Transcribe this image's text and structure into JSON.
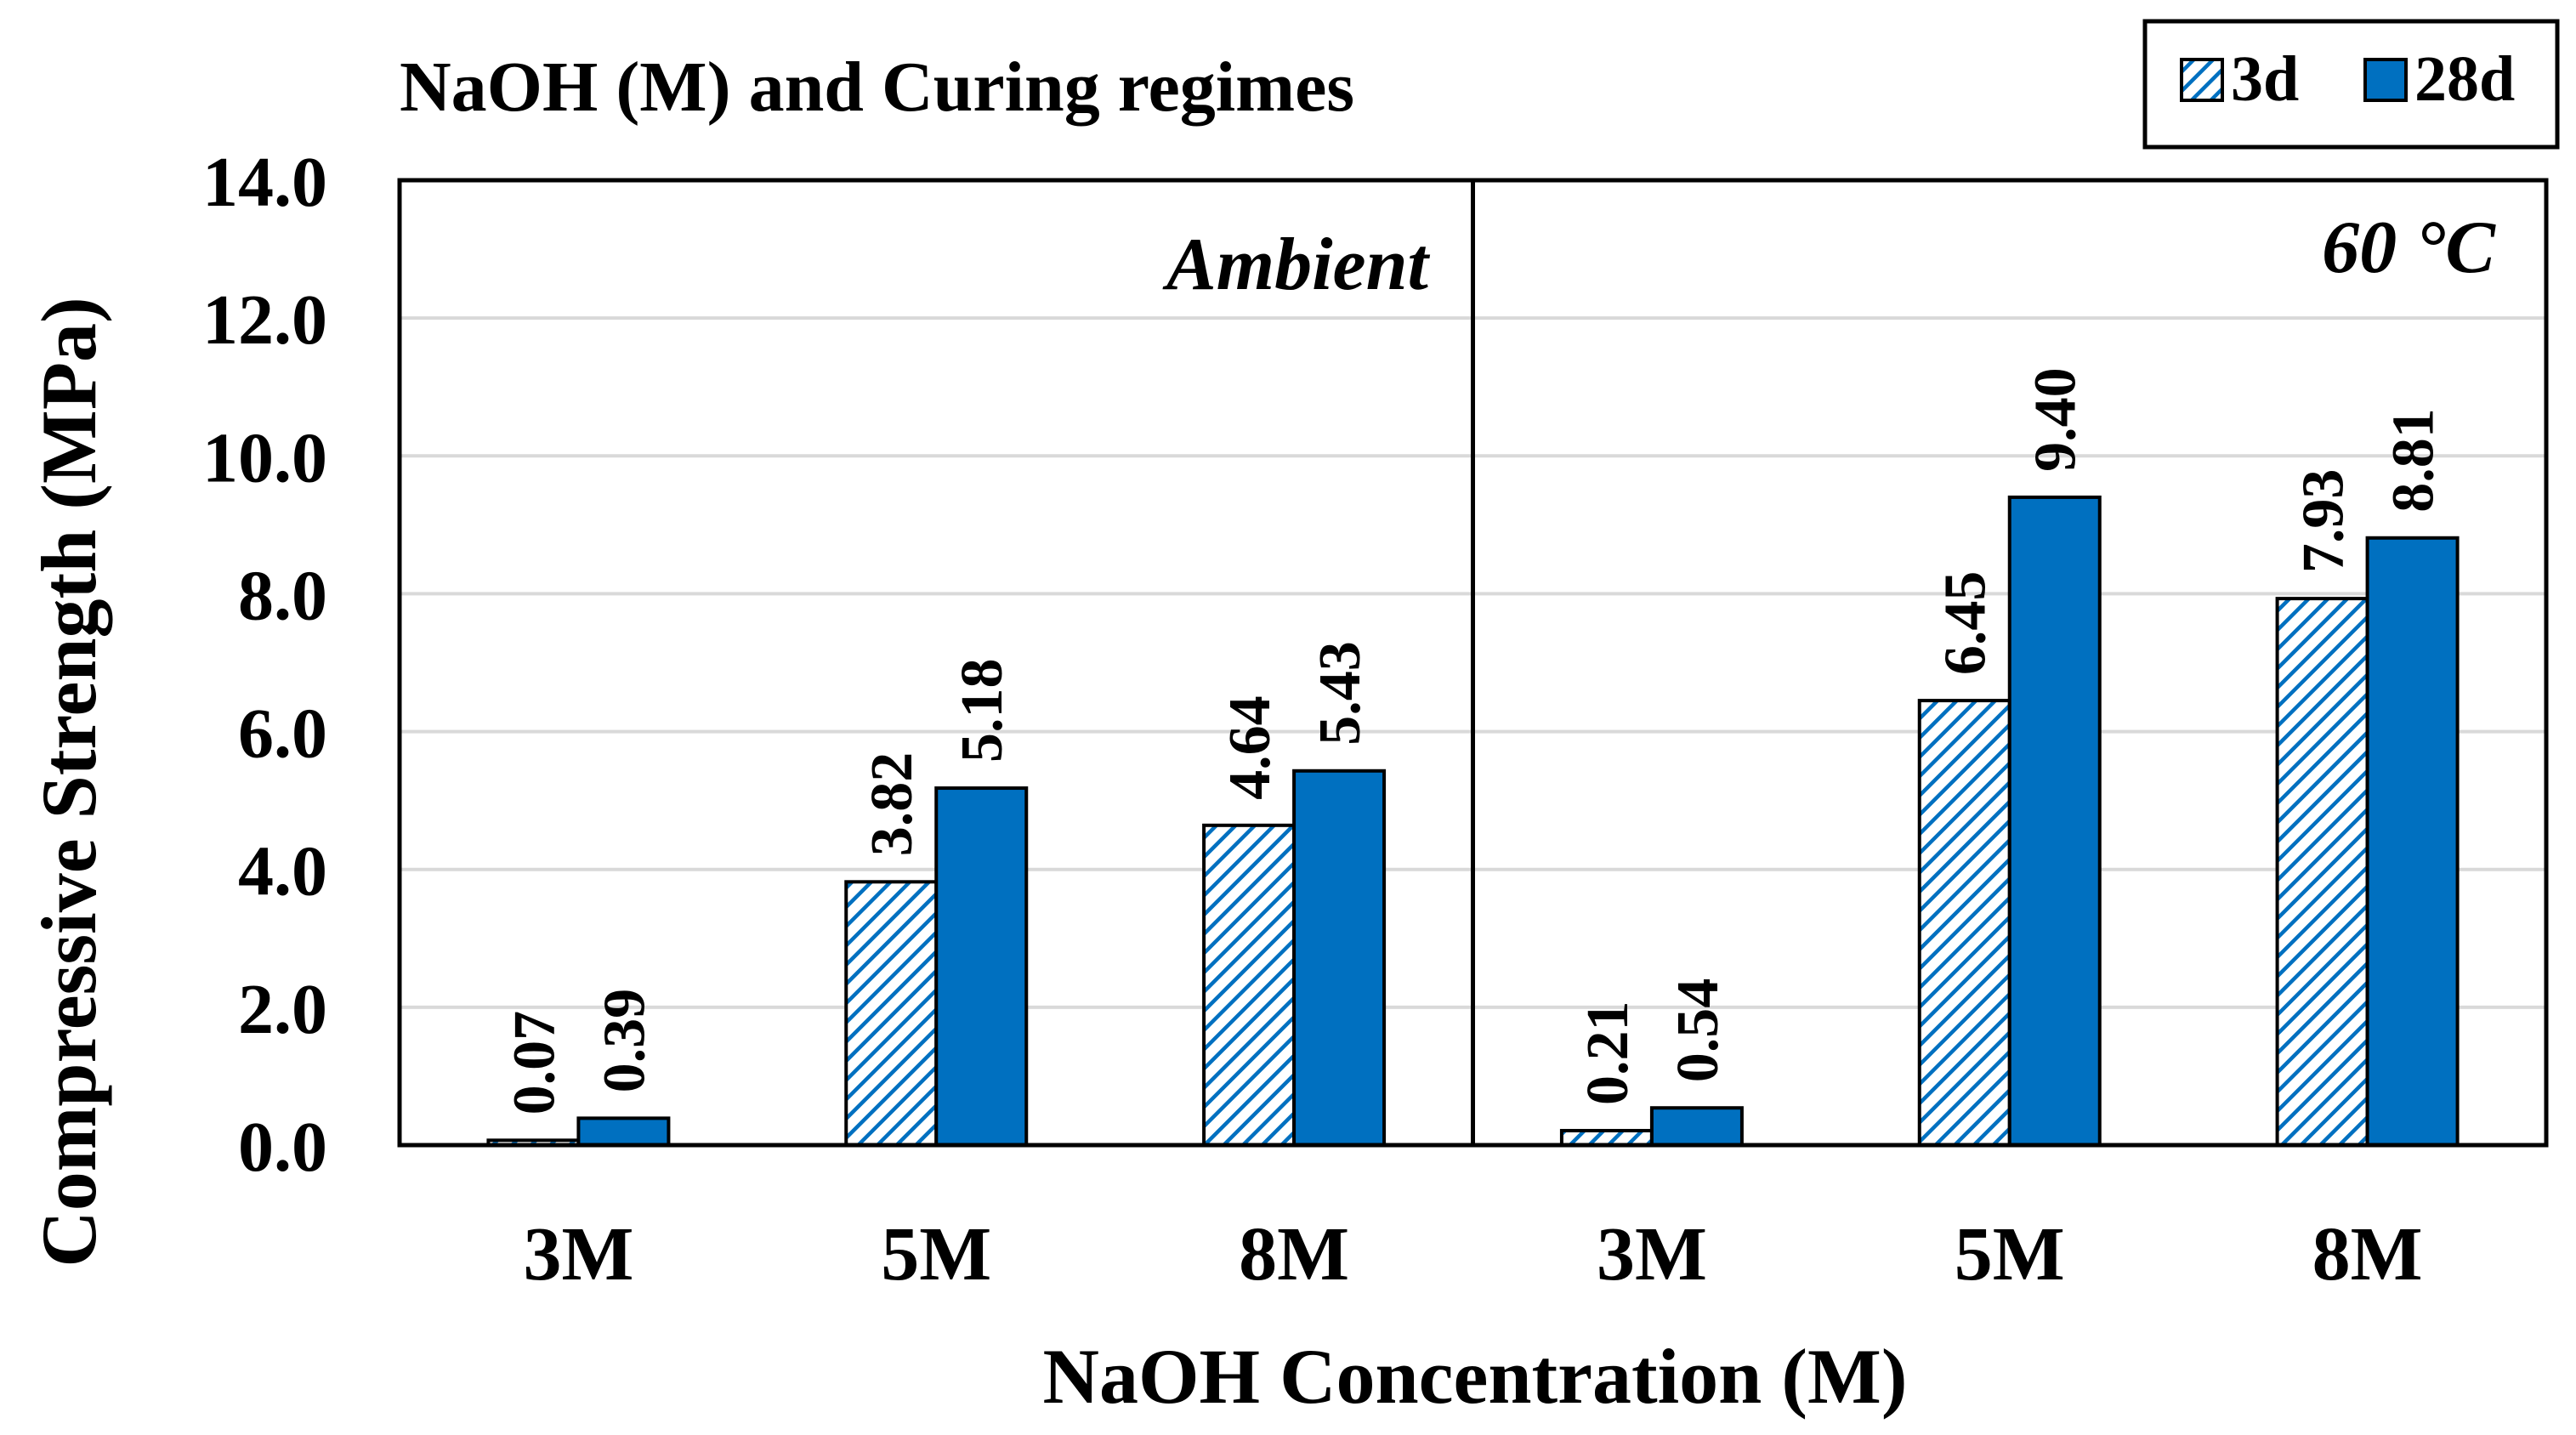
{
  "chart_data": {
    "type": "bar",
    "title": "NaOH (M) and Curing regimes",
    "xlabel": "NaOH Concentration (M)",
    "ylabel": "Compressive Strength (MPa)",
    "ylim": [
      0,
      14
    ],
    "yticks": [
      "0.0",
      "2.0",
      "4.0",
      "6.0",
      "8.0",
      "10.0",
      "12.0",
      "14.0"
    ],
    "grid": true,
    "legend_position": "top-right",
    "groups": [
      {
        "label": "Ambient",
        "categories": [
          "3M",
          "5M",
          "8M"
        ],
        "series": [
          {
            "name": "3d",
            "values": [
              0.07,
              3.82,
              4.64
            ],
            "labels": [
              "0.07",
              "3.82",
              "4.64"
            ]
          },
          {
            "name": "28d",
            "values": [
              0.39,
              5.18,
              5.43
            ],
            "labels": [
              "0.39",
              "5.18",
              "5.43"
            ]
          }
        ]
      },
      {
        "label": "60 °C",
        "categories": [
          "3M",
          "5M",
          "8M"
        ],
        "series": [
          {
            "name": "3d",
            "values": [
              0.21,
              6.45,
              7.93
            ],
            "labels": [
              "0.21",
              "6.45",
              "7.93"
            ]
          },
          {
            "name": "28d",
            "values": [
              0.54,
              9.4,
              8.81
            ],
            "labels": [
              "0.54",
              "9.40",
              "8.81"
            ]
          }
        ]
      }
    ],
    "legend": [
      {
        "name": "3d",
        "style": "hatched"
      },
      {
        "name": "28d",
        "style": "solid"
      }
    ],
    "colors": {
      "bar": "#0070C0",
      "hatch_bg": "#FFFFFF",
      "grid": "#D9D9D9",
      "axis": "#000000"
    }
  }
}
